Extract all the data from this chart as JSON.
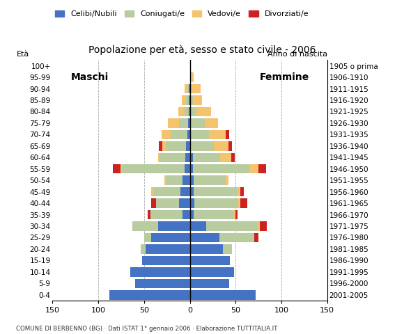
{
  "title": "Popolazione per età, sesso e stato civile - 2006",
  "subtitle": "COMUNE DI BERBENNO (BG) · Dati ISTAT 1° gennaio 2006 · Elaborazione TUTTITALIA.IT",
  "age_labels": [
    "0-4",
    "5-9",
    "10-14",
    "15-19",
    "20-24",
    "25-29",
    "30-34",
    "35-39",
    "40-44",
    "45-49",
    "50-54",
    "55-59",
    "60-64",
    "65-69",
    "70-74",
    "75-79",
    "80-84",
    "85-89",
    "90-94",
    "95-99",
    "100+"
  ],
  "birth_labels": [
    "2001-2005",
    "1996-2000",
    "1991-1995",
    "1986-1990",
    "1981-1985",
    "1976-1980",
    "1971-1975",
    "1966-1970",
    "1961-1965",
    "1956-1960",
    "1951-1955",
    "1946-1950",
    "1941-1945",
    "1936-1940",
    "1931-1935",
    "1926-1930",
    "1921-1925",
    "1916-1920",
    "1911-1915",
    "1906-1910",
    "1905 o prima"
  ],
  "legend_labels": [
    "Celibi/Nubili",
    "Coniugati/e",
    "Vedovi/e",
    "Divorziati/e"
  ],
  "colors": {
    "celibi": "#4472c4",
    "coniugati": "#b8cca0",
    "vedovi": "#f5c36e",
    "divorziati": "#cc2222"
  },
  "males": {
    "celibi": [
      88,
      60,
      65,
      52,
      48,
      42,
      35,
      8,
      12,
      10,
      8,
      6,
      5,
      4,
      3,
      2,
      1,
      1,
      1,
      0,
      0
    ],
    "coniugati": [
      0,
      0,
      0,
      0,
      6,
      8,
      28,
      35,
      25,
      30,
      18,
      68,
      28,
      22,
      18,
      10,
      5,
      3,
      1,
      0,
      0
    ],
    "vedovi": [
      0,
      0,
      0,
      0,
      0,
      0,
      0,
      0,
      0,
      2,
      2,
      2,
      2,
      4,
      10,
      12,
      7,
      5,
      4,
      0,
      0
    ],
    "divorziati": [
      0,
      0,
      0,
      0,
      0,
      0,
      0,
      3,
      5,
      0,
      0,
      8,
      0,
      4,
      0,
      0,
      0,
      0,
      0,
      0,
      0
    ]
  },
  "females": {
    "celibi": [
      72,
      43,
      48,
      44,
      36,
      32,
      18,
      4,
      5,
      4,
      4,
      3,
      3,
      1,
      1,
      1,
      1,
      1,
      1,
      0,
      0
    ],
    "coniugati": [
      0,
      0,
      0,
      0,
      10,
      38,
      56,
      44,
      48,
      48,
      35,
      62,
      30,
      25,
      20,
      15,
      6,
      2,
      1,
      0,
      0
    ],
    "vedovi": [
      0,
      0,
      0,
      0,
      0,
      0,
      2,
      2,
      2,
      3,
      3,
      10,
      12,
      16,
      18,
      15,
      16,
      10,
      10,
      4,
      0
    ],
    "divorziati": [
      0,
      0,
      0,
      0,
      0,
      5,
      8,
      2,
      8,
      4,
      0,
      8,
      4,
      4,
      4,
      0,
      0,
      0,
      0,
      0,
      0
    ]
  },
  "xlim": 150,
  "xlabel_ticks": [
    -150,
    -100,
    -50,
    0,
    50,
    100,
    150
  ],
  "xlabel_labels": [
    "150",
    "100",
    "50",
    "0",
    "50",
    "100",
    "150"
  ],
  "ylabel_left": "Età",
  "ylabel_right": "Anno di nascita",
  "label_maschi": "Maschi",
  "label_femmine": "Femmine",
  "bg_color": "#ffffff",
  "bar_height": 0.82
}
